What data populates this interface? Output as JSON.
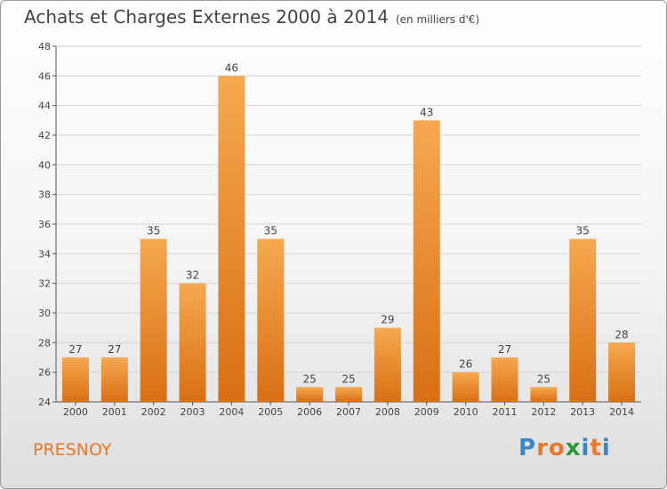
{
  "header": {
    "title": "Achats et Charges Externes 2000 à 2014",
    "unit": "(en milliers d'€)"
  },
  "commune": "PRESNOY",
  "logo": {
    "letters": [
      "P",
      "r",
      "o",
      "x",
      "i",
      "t",
      "i"
    ],
    "colors": [
      "#3a86c8",
      "#e8782a",
      "#e8782a",
      "#2a9a3a",
      "#3a86c8",
      "#e8782a",
      "#3a86c8"
    ]
  },
  "colors": {
    "bar_light": "#f6a94f",
    "bar_dark": "#d96f14",
    "axis": "#555555",
    "grid": "#d4d4d4"
  },
  "chart_data": {
    "type": "bar",
    "title": "Achats et Charges Externes 2000 à 2014",
    "categories": [
      "2000",
      "2001",
      "2002",
      "2003",
      "2004",
      "2005",
      "2006",
      "2007",
      "2008",
      "2009",
      "2010",
      "2011",
      "2012",
      "2013",
      "2014"
    ],
    "values": [
      27,
      27,
      35,
      32,
      46,
      35,
      25,
      25,
      29,
      43,
      26,
      27,
      25,
      35,
      28
    ],
    "ylim": [
      24,
      48
    ],
    "yticks": [
      24,
      26,
      28,
      30,
      32,
      34,
      36,
      38,
      40,
      42,
      44,
      46,
      48
    ],
    "grid": true,
    "data_labels": true
  }
}
